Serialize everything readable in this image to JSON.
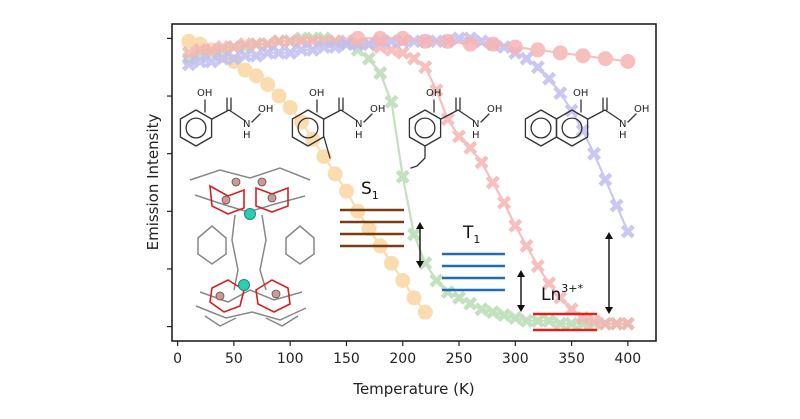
{
  "chart_data": {
    "type": "line",
    "xlabel": "Temperature (K)",
    "ylabel": "Emission Intensity",
    "xlim": [
      -5,
      425
    ],
    "ylim": [
      -0.05,
      1.05
    ],
    "xticks": [
      "0",
      "50",
      "100",
      "150",
      "200",
      "250",
      "300",
      "350",
      "400"
    ],
    "yticks_shown_without_labels": true,
    "grid": false,
    "legend": "none",
    "series": [
      {
        "marker": "circle",
        "color": "#fbd7a3",
        "x": [
          10,
          20,
          30,
          40,
          50,
          60,
          70,
          80,
          90,
          100,
          110,
          120,
          130,
          140,
          150,
          160,
          170,
          180,
          190,
          200,
          210,
          220
        ],
        "y": [
          0.99,
          0.98,
          0.96,
          0.94,
          0.92,
          0.89,
          0.87,
          0.84,
          0.8,
          0.76,
          0.71,
          0.65,
          0.59,
          0.53,
          0.47,
          0.4,
          0.34,
          0.28,
          0.22,
          0.16,
          0.1,
          0.05
        ]
      },
      {
        "marker": "cross",
        "color": "#b9dbb4",
        "x": [
          10,
          20,
          30,
          40,
          50,
          60,
          70,
          80,
          90,
          100,
          110,
          120,
          130,
          140,
          150,
          160,
          170,
          180,
          190,
          200,
          210,
          220,
          230,
          240,
          250,
          260,
          270,
          280,
          290,
          300,
          310,
          320,
          330,
          340,
          350,
          360,
          370,
          380,
          390,
          400
        ],
        "y": [
          0.93,
          0.94,
          0.95,
          0.96,
          0.97,
          0.97,
          0.98,
          0.98,
          0.99,
          0.99,
          1.0,
          1.0,
          1.0,
          0.99,
          0.98,
          0.96,
          0.93,
          0.88,
          0.78,
          0.52,
          0.32,
          0.22,
          0.16,
          0.12,
          0.1,
          0.08,
          0.06,
          0.05,
          0.04,
          0.03,
          0.02,
          0.02,
          0.02,
          0.01,
          0.01,
          0.01,
          0.01,
          0.01,
          0.01,
          0.01
        ]
      },
      {
        "marker": "cross",
        "color": "#f6b5b3",
        "x": [
          10,
          20,
          30,
          40,
          50,
          60,
          70,
          80,
          90,
          100,
          110,
          120,
          130,
          140,
          150,
          160,
          170,
          180,
          190,
          200,
          210,
          220,
          230,
          240,
          250,
          260,
          270,
          280,
          290,
          300,
          310,
          320,
          330,
          340,
          350,
          360,
          370,
          380,
          390,
          400
        ],
        "y": [
          0.95,
          0.96,
          0.96,
          0.97,
          0.97,
          0.98,
          0.98,
          0.98,
          0.99,
          0.99,
          0.99,
          0.99,
          0.99,
          0.99,
          0.99,
          0.98,
          0.98,
          0.97,
          0.96,
          0.95,
          0.93,
          0.9,
          0.82,
          0.72,
          0.66,
          0.62,
          0.57,
          0.5,
          0.43,
          0.35,
          0.28,
          0.21,
          0.15,
          0.1,
          0.06,
          0.03,
          0.02,
          0.01,
          0.01,
          0.01
        ]
      },
      {
        "marker": "cross",
        "color": "#c1bff1",
        "x": [
          10,
          20,
          30,
          40,
          50,
          60,
          70,
          80,
          90,
          100,
          110,
          120,
          130,
          140,
          150,
          160,
          170,
          180,
          190,
          200,
          210,
          220,
          230,
          240,
          250,
          260,
          270,
          280,
          290,
          300,
          310,
          320,
          330,
          340,
          350,
          360,
          370,
          380,
          390,
          400
        ],
        "y": [
          0.91,
          0.92,
          0.92,
          0.93,
          0.93,
          0.94,
          0.94,
          0.95,
          0.95,
          0.95,
          0.96,
          0.96,
          0.97,
          0.97,
          0.98,
          0.98,
          0.98,
          0.99,
          0.99,
          0.99,
          0.99,
          0.99,
          0.99,
          0.99,
          1.0,
          1.0,
          0.99,
          0.98,
          0.97,
          0.95,
          0.93,
          0.9,
          0.86,
          0.81,
          0.75,
          0.68,
          0.6,
          0.51,
          0.42,
          0.33
        ]
      },
      {
        "marker": "circle",
        "color": "#f6b5b3",
        "x": [
          160,
          180,
          200,
          220,
          240,
          260,
          280,
          300,
          320,
          340,
          360,
          380,
          400
        ],
        "y": [
          1.0,
          1.0,
          1.0,
          0.99,
          0.99,
          0.98,
          0.98,
          0.97,
          0.96,
          0.95,
          0.94,
          0.93,
          0.92
        ]
      }
    ],
    "energy_levels": [
      {
        "label": "S",
        "subscript": "1",
        "color": "#7a3d10",
        "count": 4
      },
      {
        "label": "T",
        "subscript": "1",
        "color": "#1f6db8",
        "count": 4
      },
      {
        "label": "Ln",
        "superscript": "3+*",
        "color": "#e02020",
        "count": 2
      }
    ],
    "molecule_labels": {
      "hydroxyl": "OH",
      "amide_nh": "N",
      "amide_h": "H",
      "hydroxamic_oh": "OH"
    }
  }
}
